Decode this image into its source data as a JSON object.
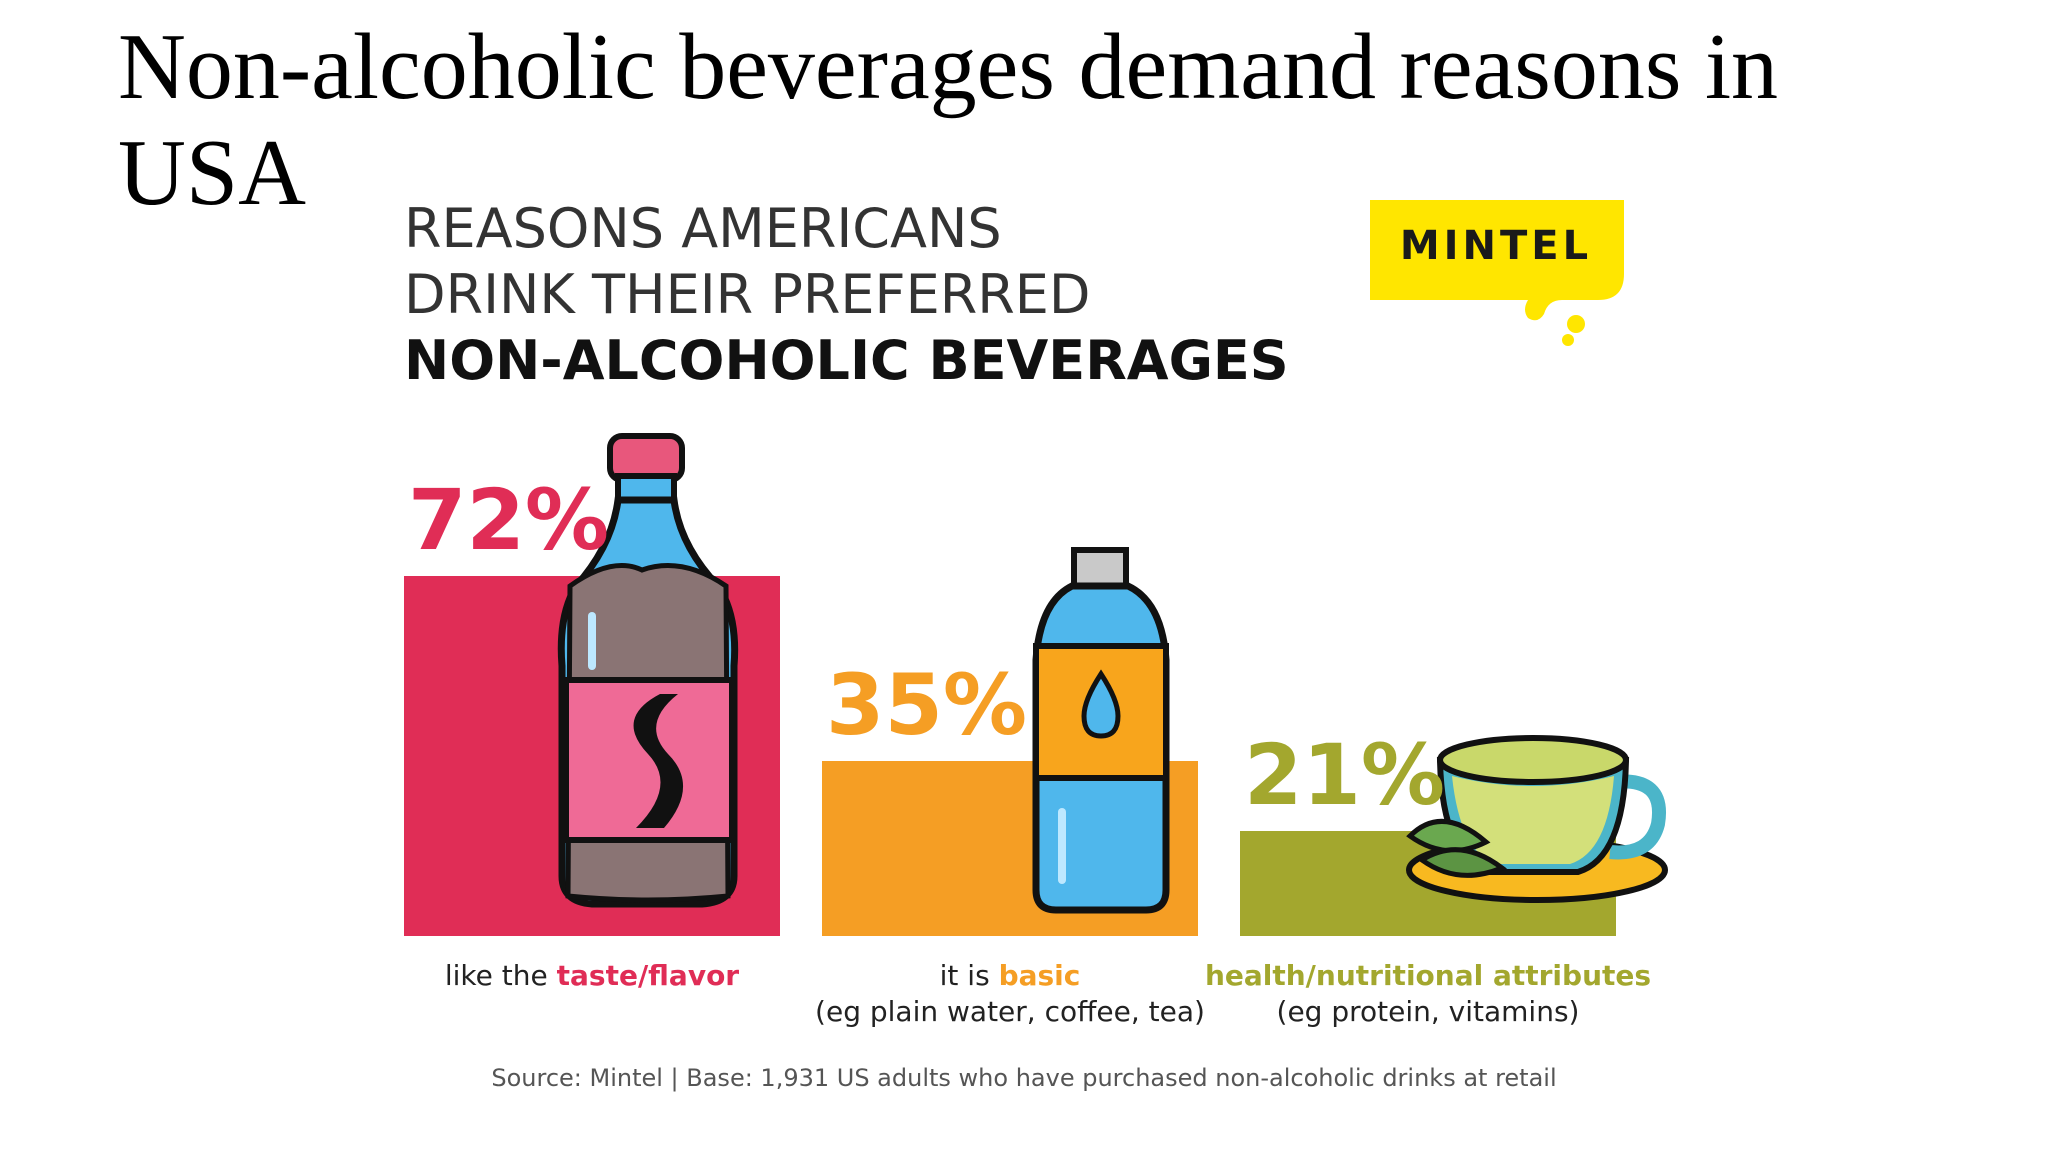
{
  "slide_title": "Non-alcoholic beverages demand reasons in USA",
  "infographic": {
    "title_lines": [
      "REASONS AMERICANS",
      "DRINK THEIR PREFERRED",
      "NON-ALCOHOLIC BEVERAGES"
    ],
    "logo_text": "MINTEL",
    "source_text": "Source: Mintel  |  Base: 1,931 US adults who have purchased non-alcoholic drinks at retail"
  },
  "chart_data": {
    "type": "bar",
    "title": "REASONS AMERICANS DRINK THEIR PREFERRED NON-ALCOHOLIC BEVERAGES",
    "categories": [
      "taste/flavor",
      "basic",
      "health/nutritional attributes"
    ],
    "values": [
      72,
      35,
      21
    ],
    "value_labels": [
      "72%",
      "35%",
      "21%"
    ],
    "ylim": [
      0,
      100
    ],
    "grid": false,
    "colors": [
      "#e02d56",
      "#f59e24",
      "#a3a72e"
    ],
    "label_parts": [
      {
        "pre": "like the ",
        "accent": "taste/flavor",
        "sub": ""
      },
      {
        "pre": "it is ",
        "accent": "basic",
        "sub": "(eg plain water, coffee, tea)"
      },
      {
        "pre": "",
        "accent": "health/nutritional attributes",
        "sub": "(eg protein, vitamins)"
      }
    ],
    "icons": [
      "soda-bottle-icon",
      "water-bottle-icon",
      "tea-cup-icon"
    ]
  }
}
